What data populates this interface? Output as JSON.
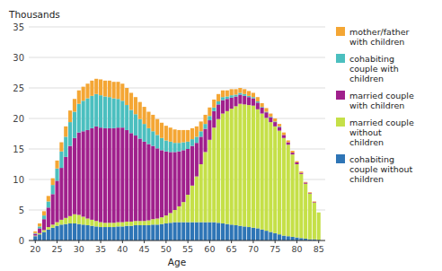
{
  "chart_data": {
    "type": "bar",
    "stacked": true,
    "grid": true,
    "legend": "right",
    "x_label": "Age",
    "y_label": "Thousands",
    "x": [
      20,
      21,
      22,
      23,
      24,
      25,
      26,
      27,
      28,
      29,
      30,
      31,
      32,
      33,
      34,
      35,
      36,
      37,
      38,
      39,
      40,
      41,
      42,
      43,
      44,
      45,
      46,
      47,
      48,
      49,
      50,
      51,
      52,
      53,
      54,
      55,
      56,
      57,
      58,
      59,
      60,
      61,
      62,
      63,
      64,
      65,
      66,
      67,
      68,
      69,
      70,
      71,
      72,
      73,
      74,
      75,
      76,
      77,
      78,
      79,
      80,
      81,
      82,
      83,
      84,
      85
    ],
    "xlim": [
      18.5,
      86.5
    ],
    "xticks": [
      20,
      25,
      30,
      35,
      40,
      45,
      50,
      55,
      60,
      65,
      70,
      75,
      80,
      85
    ],
    "ylim": [
      0,
      35
    ],
    "yticks": [
      0,
      5,
      10,
      15,
      20,
      25,
      30,
      35
    ],
    "series": [
      {
        "name": "cohabiting\ncouple without\nchildren",
        "color": "#2E75B6",
        "values": [
          0.7,
          1.0,
          1.4,
          1.8,
          2.1,
          2.4,
          2.6,
          2.7,
          2.8,
          2.8,
          2.7,
          2.6,
          2.5,
          2.4,
          2.3,
          2.2,
          2.2,
          2.2,
          2.2,
          2.3,
          2.3,
          2.4,
          2.4,
          2.5,
          2.5,
          2.5,
          2.5,
          2.6,
          2.6,
          2.7,
          2.8,
          2.9,
          3.0,
          3.0,
          3.0,
          3.0,
          3.0,
          3.0,
          3.0,
          3.0,
          3.0,
          3.0,
          2.9,
          2.8,
          2.7,
          2.6,
          2.5,
          2.4,
          2.3,
          2.2,
          2.1,
          2.0,
          1.8,
          1.6,
          1.4,
          1.2,
          1.0,
          0.8,
          0.7,
          0.6,
          0.5,
          0.4,
          0.3,
          0.2,
          0.2,
          0.1
        ]
      },
      {
        "name": "married couple\nwithout\nchildren",
        "color": "#C5E048",
        "values": [
          0.1,
          0.2,
          0.3,
          0.4,
          0.5,
          0.6,
          0.8,
          1.0,
          1.2,
          1.5,
          1.5,
          1.3,
          1.1,
          1.0,
          0.9,
          0.8,
          0.7,
          0.7,
          0.7,
          0.7,
          0.7,
          0.7,
          0.7,
          0.7,
          0.7,
          0.7,
          0.8,
          0.9,
          1.0,
          1.1,
          1.3,
          1.6,
          2.0,
          2.6,
          3.3,
          4.5,
          6.0,
          7.5,
          9.5,
          11.5,
          13.5,
          15.5,
          17.0,
          18.0,
          18.5,
          19.0,
          19.5,
          20.0,
          20.0,
          20.0,
          20.0,
          19.5,
          19.0,
          18.5,
          18.0,
          17.5,
          17.0,
          16.0,
          15.0,
          13.5,
          12.0,
          10.5,
          9.0,
          7.5,
          6.0,
          4.5
        ]
      },
      {
        "name": "married couple\nwith children",
        "color": "#A0208C",
        "values": [
          0.3,
          0.8,
          1.8,
          3.2,
          5.0,
          6.8,
          8.5,
          10.0,
          11.5,
          12.5,
          13.5,
          14.0,
          14.5,
          15.0,
          15.5,
          15.5,
          15.5,
          15.5,
          15.5,
          15.5,
          15.5,
          15.0,
          14.5,
          14.0,
          13.5,
          13.0,
          12.5,
          12.0,
          11.5,
          11.0,
          10.5,
          10.0,
          9.5,
          9.0,
          8.5,
          7.5,
          6.5,
          5.5,
          4.5,
          3.8,
          3.2,
          2.7,
          2.4,
          2.2,
          2.0,
          1.8,
          1.6,
          1.5,
          1.4,
          1.3,
          1.2,
          1.1,
          1.0,
          0.9,
          0.8,
          0.7,
          0.6,
          0.5,
          0.4,
          0.3,
          0.3,
          0.2,
          0.2,
          0.1,
          0.1,
          0.0
        ]
      },
      {
        "name": "cohabiting\ncouple with\nchildren",
        "color": "#4BBFBF",
        "values": [
          0.1,
          0.3,
          0.6,
          1.0,
          1.5,
          2.0,
          2.7,
          3.3,
          3.9,
          4.3,
          4.7,
          5.0,
          5.2,
          5.3,
          5.3,
          5.3,
          5.2,
          5.1,
          4.9,
          4.7,
          4.4,
          4.1,
          3.8,
          3.5,
          3.2,
          2.9,
          2.6,
          2.4,
          2.2,
          2.0,
          1.8,
          1.7,
          1.5,
          1.4,
          1.3,
          1.2,
          1.1,
          1.0,
          0.9,
          0.8,
          0.7,
          0.6,
          0.5,
          0.5,
          0.4,
          0.4,
          0.3,
          0.3,
          0.3,
          0.2,
          0.2,
          0.2,
          0.1,
          0.1,
          0.1,
          0.1,
          0.1,
          0.0,
          0.0,
          0.0,
          0.0,
          0.0,
          0.0,
          0.0,
          0.0,
          0.0
        ]
      },
      {
        "name": "mother/father\nwith children",
        "color": "#F4A634",
        "values": [
          0.3,
          0.5,
          0.7,
          0.9,
          1.1,
          1.3,
          1.5,
          1.7,
          1.9,
          2.1,
          2.2,
          2.3,
          2.4,
          2.5,
          2.5,
          2.6,
          2.6,
          2.7,
          2.7,
          2.8,
          2.8,
          2.8,
          2.8,
          2.8,
          2.8,
          2.8,
          2.7,
          2.7,
          2.6,
          2.5,
          2.4,
          2.3,
          2.2,
          2.1,
          2.0,
          1.9,
          1.8,
          1.7,
          1.6,
          1.5,
          1.4,
          1.3,
          1.2,
          1.1,
          1.0,
          1.0,
          0.9,
          0.8,
          0.8,
          0.8,
          0.7,
          0.7,
          0.6,
          0.6,
          0.5,
          0.5,
          0.4,
          0.4,
          0.3,
          0.3,
          0.2,
          0.2,
          0.1,
          0.1,
          0.1,
          0.0
        ]
      }
    ]
  }
}
